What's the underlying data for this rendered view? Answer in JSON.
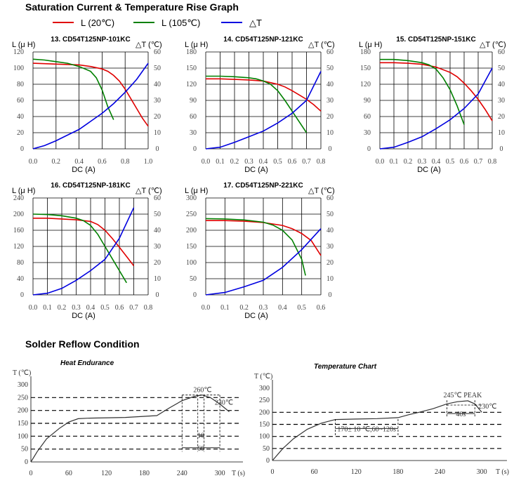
{
  "header": {
    "title": "Saturation Current & Temperature Rise  Graph",
    "legend": [
      {
        "label": "L (20℃)",
        "color": "#e00000"
      },
      {
        "label": "L (105℃)",
        "color": "#008000"
      },
      {
        "label": "△T",
        "color": "#0000e0"
      }
    ]
  },
  "colors": {
    "l20": "#e00000",
    "l105": "#008000",
    "dt": "#0000e0"
  },
  "labels": {
    "left_axis": "L (μ H)",
    "right_axis": "△T (℃)",
    "x_axis": "DC (A)"
  },
  "chart_data": [
    {
      "type": "line",
      "title": "13. CD54T125NP-101KC",
      "xlabel": "DC (A)",
      "ylabel": "L (μ H)",
      "y2label": "△T (℃)",
      "xlim": [
        0,
        1.0
      ],
      "ylim": [
        0,
        120
      ],
      "y2lim": [
        0,
        60
      ],
      "xticks": [
        "0.0",
        "0.2",
        "0.4",
        "0.6",
        "0.8",
        "1.0"
      ],
      "yticks": [
        "0",
        "20",
        "40",
        "60",
        "80",
        "100",
        "120"
      ],
      "y2ticks": [
        "0",
        "10",
        "20",
        "30",
        "40",
        "50",
        "60"
      ],
      "series": [
        {
          "name": "L (20℃)",
          "axis": "left",
          "x": [
            0,
            0.2,
            0.4,
            0.5,
            0.6,
            0.65,
            0.7,
            0.75,
            0.8,
            0.85,
            0.9,
            0.95,
            1.0
          ],
          "y": [
            106,
            105,
            104,
            102,
            99,
            96,
            91,
            84,
            74,
            62,
            50,
            38,
            28
          ]
        },
        {
          "name": "L (105℃)",
          "axis": "left",
          "x": [
            0,
            0.1,
            0.2,
            0.3,
            0.4,
            0.5,
            0.55,
            0.6,
            0.65,
            0.7
          ],
          "y": [
            111,
            110,
            108,
            106,
            102,
            96,
            88,
            73,
            52,
            36
          ]
        },
        {
          "name": "△T",
          "axis": "right",
          "x": [
            0,
            0.1,
            0.2,
            0.3,
            0.4,
            0.5,
            0.6,
            0.7,
            0.8,
            0.9,
            1.0
          ],
          "y": [
            0,
            2,
            5,
            8.5,
            12,
            17,
            22,
            28,
            35,
            43,
            53
          ]
        }
      ]
    },
    {
      "type": "line",
      "title": "14. CD54T125NP-121KC",
      "xlabel": "DC (A)",
      "ylabel": "L (μ H)",
      "y2label": "△T (℃)",
      "xlim": [
        0,
        0.8
      ],
      "ylim": [
        0,
        180
      ],
      "y2lim": [
        0,
        60
      ],
      "xticks": [
        "0.0",
        "0.1",
        "0.2",
        "0.3",
        "0.4",
        "0.5",
        "0.6",
        "0.7",
        "0.8"
      ],
      "yticks": [
        "0",
        "30",
        "60",
        "90",
        "120",
        "150",
        "180"
      ],
      "y2ticks": [
        "0",
        "10",
        "20",
        "30",
        "40",
        "50",
        "60"
      ],
      "series": [
        {
          "name": "L (20℃)",
          "axis": "left",
          "x": [
            0,
            0.1,
            0.2,
            0.3,
            0.4,
            0.5,
            0.55,
            0.6,
            0.65,
            0.7,
            0.75,
            0.8
          ],
          "y": [
            130,
            130,
            129,
            128,
            126,
            120,
            115,
            108,
            100,
            92,
            82,
            70
          ]
        },
        {
          "name": "L (105℃)",
          "axis": "left",
          "x": [
            0,
            0.1,
            0.2,
            0.3,
            0.35,
            0.4,
            0.45,
            0.5,
            0.55,
            0.6,
            0.65,
            0.7
          ],
          "y": [
            135,
            135,
            134,
            132,
            130,
            126,
            120,
            108,
            90,
            70,
            50,
            30
          ]
        },
        {
          "name": "△T",
          "axis": "right",
          "x": [
            0,
            0.1,
            0.2,
            0.3,
            0.4,
            0.5,
            0.6,
            0.7,
            0.8
          ],
          "y": [
            0,
            1,
            4,
            7.5,
            11,
            16,
            22,
            30,
            48
          ]
        }
      ]
    },
    {
      "type": "line",
      "title": "15. CD54T125NP-151KC",
      "xlabel": "DC (A)",
      "ylabel": "L (μ H)",
      "y2label": "△T (℃)",
      "xlim": [
        0,
        0.8
      ],
      "ylim": [
        0,
        180
      ],
      "y2lim": [
        0,
        60
      ],
      "xticks": [
        "0.0",
        "0.1",
        "0.2",
        "0.3",
        "0.4",
        "0.5",
        "0.6",
        "0.7",
        "0.8"
      ],
      "yticks": [
        "0",
        "30",
        "60",
        "90",
        "120",
        "150",
        "180"
      ],
      "y2ticks": [
        "0",
        "10",
        "20",
        "30",
        "40",
        "50",
        "60"
      ],
      "series": [
        {
          "name": "L (20℃)",
          "axis": "left",
          "x": [
            0,
            0.1,
            0.2,
            0.3,
            0.4,
            0.5,
            0.55,
            0.6,
            0.65,
            0.7,
            0.75,
            0.8
          ],
          "y": [
            160,
            160,
            159,
            157,
            152,
            142,
            134,
            122,
            108,
            92,
            73,
            52
          ]
        },
        {
          "name": "L (105℃)",
          "axis": "left",
          "x": [
            0,
            0.1,
            0.2,
            0.3,
            0.35,
            0.4,
            0.45,
            0.5,
            0.55,
            0.6
          ],
          "y": [
            166,
            166,
            164,
            160,
            156,
            148,
            132,
            110,
            80,
            45
          ]
        },
        {
          "name": "△T",
          "axis": "right",
          "x": [
            0,
            0.1,
            0.2,
            0.3,
            0.4,
            0.5,
            0.6,
            0.7,
            0.8
          ],
          "y": [
            0,
            1,
            4,
            7.5,
            12.5,
            18,
            25,
            34,
            50
          ]
        }
      ]
    },
    {
      "type": "line",
      "title": "16. CD54T125NP-181KC",
      "xlabel": "DC (A)",
      "ylabel": "L (μ H)",
      "y2label": "△T (℃)",
      "xlim": [
        0,
        0.8
      ],
      "ylim": [
        0,
        240
      ],
      "y2lim": [
        0,
        60
      ],
      "xticks": [
        "0.0",
        "0.1",
        "0.2",
        "0.3",
        "0.4",
        "0.5",
        "0.6",
        "0.7",
        "0.8"
      ],
      "yticks": [
        "0",
        "40",
        "80",
        "120",
        "160",
        "200",
        "240"
      ],
      "y2ticks": [
        "0",
        "10",
        "20",
        "30",
        "40",
        "50",
        "60"
      ],
      "series": [
        {
          "name": "L (20℃)",
          "axis": "left",
          "x": [
            0,
            0.1,
            0.2,
            0.3,
            0.4,
            0.45,
            0.5,
            0.55,
            0.6,
            0.65,
            0.7
          ],
          "y": [
            190,
            190,
            188,
            186,
            182,
            174,
            160,
            140,
            118,
            95,
            72
          ]
        },
        {
          "name": "L (105℃)",
          "axis": "left",
          "x": [
            0,
            0.1,
            0.2,
            0.3,
            0.35,
            0.4,
            0.45,
            0.5,
            0.55,
            0.6,
            0.65
          ],
          "y": [
            200,
            199,
            196,
            190,
            184,
            172,
            150,
            120,
            90,
            60,
            30
          ]
        },
        {
          "name": "△T",
          "axis": "right",
          "x": [
            0,
            0.1,
            0.2,
            0.3,
            0.4,
            0.5,
            0.6,
            0.7
          ],
          "y": [
            0,
            1,
            4,
            9,
            15,
            22,
            35,
            54
          ]
        }
      ]
    },
    {
      "type": "line",
      "title": "17. CD54T125NP-221KC",
      "xlabel": "DC (A)",
      "ylabel": "L (μ H)",
      "y2label": "△T (℃)",
      "xlim": [
        0,
        0.6
      ],
      "ylim": [
        0,
        300
      ],
      "y2lim": [
        0,
        60
      ],
      "xticks": [
        "0.0",
        "0.1",
        "0.2",
        "0.3",
        "0.4",
        "0.5",
        "0.6"
      ],
      "yticks": [
        "0",
        "50",
        "100",
        "150",
        "200",
        "250",
        "300"
      ],
      "y2ticks": [
        "0",
        "10",
        "20",
        "30",
        "40",
        "50",
        "60"
      ],
      "series": [
        {
          "name": "L (20℃)",
          "axis": "left",
          "x": [
            0,
            0.1,
            0.2,
            0.3,
            0.4,
            0.45,
            0.5,
            0.55,
            0.6
          ],
          "y": [
            230,
            230,
            228,
            224,
            215,
            205,
            190,
            168,
            122
          ]
        },
        {
          "name": "L (105℃)",
          "axis": "left",
          "x": [
            0,
            0.1,
            0.2,
            0.3,
            0.35,
            0.4,
            0.45,
            0.5,
            0.52
          ],
          "y": [
            236,
            235,
            232,
            225,
            216,
            200,
            170,
            110,
            60
          ]
        },
        {
          "name": "△T",
          "axis": "right",
          "x": [
            0,
            0.1,
            0.2,
            0.3,
            0.4,
            0.5,
            0.6
          ],
          "y": [
            0,
            1.5,
            5,
            9,
            17,
            28,
            41
          ]
        }
      ]
    }
  ],
  "reflow": {
    "title": "Solder Reflow Condition",
    "heat": {
      "title": "Heat Endurance",
      "ylabel": "T (℃)",
      "xlabel": "T (s)",
      "xticks": [
        "0",
        "60",
        "120",
        "180",
        "240",
        "300"
      ],
      "yticks": [
        "0",
        "50",
        "100",
        "150",
        "200",
        "250",
        "300"
      ],
      "xlim": [
        0,
        330
      ],
      "ylim": [
        0,
        300
      ],
      "dashed_levels": [
        50,
        100,
        150,
        200,
        250
      ],
      "curve": {
        "x": [
          0,
          10,
          25,
          45,
          60,
          75,
          90,
          150,
          200,
          220,
          240,
          260,
          272,
          285,
          300,
          315
        ],
        "y": [
          0,
          40,
          90,
          130,
          155,
          168,
          170,
          173,
          180,
          210,
          238,
          255,
          260,
          250,
          225,
          195
        ]
      },
      "annotations": {
        "peak": "260℃",
        "hold": "230℃",
        "t1": "10",
        "t2": "60"
      }
    },
    "temp": {
      "title": "Temperature Chart",
      "ylabel": "T (℃)",
      "xlabel": "T (s)",
      "xticks": [
        "0",
        "60",
        "120",
        "180",
        "240",
        "300"
      ],
      "yticks": [
        "0",
        "50",
        "100",
        "150",
        "200",
        "250",
        "300"
      ],
      "xlim": [
        0,
        330
      ],
      "ylim": [
        0,
        300
      ],
      "dashed_levels": [
        50,
        100,
        150,
        200
      ],
      "curve": {
        "x": [
          0,
          15,
          30,
          50,
          70,
          90,
          120,
          150,
          180,
          195,
          210,
          230,
          250,
          265,
          280,
          290,
          300
        ],
        "y": [
          0,
          50,
          90,
          130,
          155,
          170,
          172,
          174,
          178,
          190,
          200,
          215,
          235,
          244,
          248,
          235,
          200
        ]
      },
      "annotations": {
        "peak": "245℃  PEAK",
        "hold": "230℃",
        "soak": "170± 10 ℃,60~120s",
        "t1": "40s"
      }
    }
  }
}
